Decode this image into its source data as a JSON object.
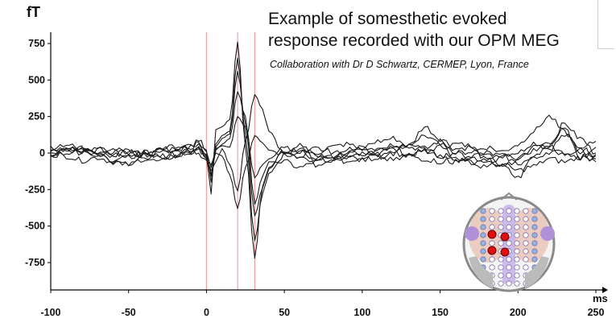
{
  "header": {
    "title_line1": "Example of somesthetic evoked",
    "title_line2": "response recorded with our OPM MEG",
    "subtitle": "Collaboration with Dr D Schwartz, CERMEP, Lyon, France"
  },
  "chart_data": {
    "type": "line",
    "ylabel": "fT",
    "xlabel": "ms",
    "xlim": [
      -100,
      250
    ],
    "ylim": [
      -950,
      800
    ],
    "xticks": [
      -100,
      -50,
      0,
      50,
      100,
      150,
      200,
      250
    ],
    "yticks": [
      750,
      500,
      250,
      0,
      -250,
      -500,
      -750
    ],
    "markers_ms": [
      0,
      20,
      31
    ],
    "series": [
      {
        "x": [
          -100,
          -90,
          -80,
          -70,
          -60,
          -50,
          -40,
          -30,
          -20,
          -10,
          -5,
          0,
          3,
          6,
          10,
          15,
          20,
          25,
          31,
          36,
          40,
          50,
          60,
          70,
          80,
          90,
          100,
          110,
          120,
          130,
          140,
          150,
          160,
          170,
          180,
          190,
          200,
          210,
          220,
          230,
          240,
          250
        ],
        "y": [
          20,
          35,
          15,
          40,
          -10,
          10,
          -40,
          15,
          30,
          40,
          60,
          -20,
          -280,
          160,
          180,
          230,
          760,
          40,
          -720,
          -230,
          -100,
          10,
          35,
          -50,
          -30,
          5,
          10,
          40,
          25,
          -10,
          15,
          40,
          60,
          50,
          -20,
          -10,
          5,
          70,
          30,
          120,
          40,
          -20
        ]
      },
      {
        "x": [
          -100,
          -90,
          -80,
          -70,
          -60,
          -50,
          -40,
          -30,
          -20,
          -10,
          -5,
          0,
          3,
          6,
          10,
          15,
          20,
          25,
          31,
          36,
          40,
          50,
          60,
          70,
          80,
          90,
          100,
          110,
          120,
          130,
          140,
          150,
          160,
          170,
          180,
          190,
          200,
          210,
          220,
          230,
          240,
          250
        ],
        "y": [
          -10,
          30,
          10,
          -20,
          -60,
          -30,
          -10,
          20,
          50,
          10,
          40,
          -30,
          -160,
          60,
          120,
          150,
          650,
          120,
          -600,
          -280,
          -140,
          -10,
          60,
          -20,
          -60,
          -20,
          0,
          -10,
          20,
          60,
          120,
          60,
          -40,
          -70,
          -100,
          -20,
          -40,
          40,
          70,
          160,
          -30,
          40
        ]
      },
      {
        "x": [
          -100,
          -90,
          -80,
          -70,
          -60,
          -50,
          -40,
          -30,
          -20,
          -10,
          -5,
          0,
          3,
          6,
          10,
          15,
          20,
          25,
          31,
          36,
          40,
          50,
          60,
          70,
          80,
          90,
          100,
          110,
          120,
          130,
          140,
          150,
          160,
          170,
          180,
          190,
          200,
          210,
          220,
          230,
          240,
          250
        ],
        "y": [
          30,
          10,
          40,
          0,
          -50,
          -70,
          -20,
          10,
          -10,
          30,
          70,
          20,
          -200,
          40,
          100,
          130,
          560,
          200,
          -430,
          -240,
          -110,
          20,
          -20,
          -80,
          -40,
          -10,
          40,
          80,
          100,
          50,
          180,
          100,
          30,
          40,
          -50,
          -90,
          -170,
          -20,
          60,
          200,
          100,
          0
        ]
      },
      {
        "x": [
          -100,
          -90,
          -80,
          -70,
          -60,
          -50,
          -40,
          -30,
          -20,
          -10,
          -5,
          0,
          3,
          6,
          10,
          15,
          20,
          25,
          31,
          36,
          40,
          50,
          60,
          70,
          80,
          90,
          100,
          110,
          120,
          130,
          140,
          150,
          160,
          170,
          180,
          190,
          200,
          210,
          220,
          230,
          240,
          250
        ],
        "y": [
          0,
          -20,
          -50,
          -30,
          -60,
          -80,
          -40,
          -60,
          -20,
          0,
          20,
          -10,
          -150,
          20,
          60,
          100,
          420,
          250,
          -350,
          -160,
          -60,
          -60,
          -100,
          -60,
          -20,
          -60,
          -30,
          30,
          60,
          40,
          30,
          80,
          10,
          -40,
          -70,
          -100,
          -40,
          20,
          50,
          -20,
          10,
          -60
        ]
      },
      {
        "x": [
          -100,
          -90,
          -80,
          -70,
          -60,
          -50,
          -40,
          -30,
          -20,
          -10,
          -5,
          0,
          3,
          6,
          10,
          15,
          20,
          25,
          31,
          36,
          40,
          50,
          60,
          70,
          80,
          90,
          100,
          110,
          120,
          130,
          140,
          150,
          160,
          170,
          180,
          190,
          200,
          210,
          220,
          230,
          240,
          250
        ],
        "y": [
          40,
          60,
          20,
          -10,
          10,
          -30,
          0,
          30,
          20,
          50,
          90,
          10,
          -100,
          30,
          50,
          40,
          250,
          180,
          -170,
          -80,
          -40,
          30,
          20,
          0,
          40,
          60,
          30,
          -10,
          40,
          60,
          20,
          -20,
          0,
          10,
          40,
          10,
          60,
          150,
          250,
          140,
          20,
          80
        ]
      },
      {
        "x": [
          -100,
          -90,
          -80,
          -70,
          -60,
          -50,
          -40,
          -30,
          -20,
          -10,
          -5,
          0,
          3,
          6,
          10,
          15,
          20,
          25,
          31,
          36,
          40,
          50,
          60,
          70,
          80,
          90,
          100,
          110,
          120,
          130,
          140,
          150,
          160,
          170,
          180,
          190,
          200,
          210,
          220,
          230,
          240,
          250
        ],
        "y": [
          -20,
          0,
          30,
          10,
          -20,
          20,
          -10,
          -40,
          0,
          20,
          30,
          -40,
          -120,
          -60,
          30,
          -80,
          -260,
          80,
          400,
          300,
          150,
          0,
          -40,
          30,
          10,
          -20,
          -50,
          -30,
          0,
          -20,
          10,
          -30,
          -60,
          -20,
          0,
          -20,
          -70,
          -40,
          10,
          0,
          -30,
          -10
        ]
      },
      {
        "x": [
          -100,
          -90,
          -80,
          -70,
          -60,
          -50,
          -40,
          -30,
          -20,
          -10,
          -5,
          0,
          3,
          6,
          10,
          15,
          20,
          25,
          31,
          36,
          40,
          50,
          60,
          70,
          80,
          90,
          100,
          110,
          120,
          130,
          140,
          150,
          160,
          170,
          180,
          190,
          200,
          210,
          220,
          230,
          240,
          250
        ],
        "y": [
          10,
          20,
          0,
          20,
          30,
          0,
          10,
          -20,
          -30,
          10,
          0,
          -50,
          -80,
          0,
          -20,
          -150,
          -380,
          -100,
          120,
          70,
          20,
          -10,
          10,
          -30,
          -20,
          30,
          -10,
          -30,
          -50,
          -20,
          -40,
          -60,
          -30,
          -60,
          -40,
          -80,
          -120,
          -90,
          -40,
          -60,
          -30,
          -40
        ]
      }
    ],
    "colors": {
      "trace": "#1a1a1a",
      "marker": "#f2a0a0",
      "axis": "#000000"
    }
  },
  "inset": {
    "head_outline": "#8a8a8a",
    "left_tint": "#e7c4b6",
    "right_tint": "#e7c4b6",
    "purple": "#b090d8",
    "blue": "#8fb6e0",
    "active_dot": "#e01010"
  }
}
